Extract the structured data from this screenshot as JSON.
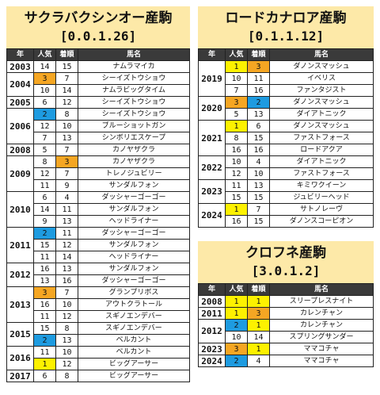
{
  "colors": {
    "orange": "#f5a623",
    "blue": "#1e9be0",
    "yellow": "#fdf100",
    "header_bg": "#fde9a8",
    "thead_bg": "#3a3a3a"
  },
  "columns": {
    "year": "年",
    "popularity": "人気",
    "finish": "着順",
    "horse": "馬名"
  },
  "tables": [
    {
      "title": "サクラバクシンオー産駒",
      "record": "[0.0.1.26]",
      "groups": [
        {
          "year": "2003",
          "rows": [
            {
              "pop": "14",
              "fin": "15",
              "horse": "ナムラマイカ"
            }
          ]
        },
        {
          "year": "2004",
          "rows": [
            {
              "pop": "3",
              "pop_hl": "orange",
              "fin": "7",
              "horse": "シーイズトウショウ"
            },
            {
              "pop": "10",
              "fin": "14",
              "horse": "ナムラビッグタイム"
            }
          ]
        },
        {
          "year": "2005",
          "rows": [
            {
              "pop": "6",
              "fin": "12",
              "horse": "シーイズトウショウ"
            }
          ]
        },
        {
          "year": "2006",
          "rows": [
            {
              "pop": "2",
              "pop_hl": "blue",
              "fin": "8",
              "horse": "シーイズトウショウ"
            },
            {
              "pop": "12",
              "fin": "10",
              "horse": "ブルーショットガン"
            },
            {
              "pop": "7",
              "fin": "13",
              "horse": "シンボリエスケープ"
            }
          ]
        },
        {
          "year": "2008",
          "rows": [
            {
              "pop": "5",
              "fin": "7",
              "horse": "カノヤザクラ"
            }
          ]
        },
        {
          "year": "2009",
          "rows": [
            {
              "pop": "8",
              "fin": "3",
              "fin_hl": "orange",
              "horse": "カノヤザクラ"
            },
            {
              "pop": "12",
              "fin": "7",
              "horse": "トレノジュビリー"
            },
            {
              "pop": "11",
              "fin": "9",
              "horse": "サンダルフォン"
            }
          ]
        },
        {
          "year": "2010",
          "rows": [
            {
              "pop": "6",
              "fin": "4",
              "horse": "ダッシャーゴーゴー"
            },
            {
              "pop": "14",
              "fin": "11",
              "horse": "サンダルフォン"
            },
            {
              "pop": "9",
              "fin": "13",
              "horse": "ヘッドライナー"
            }
          ]
        },
        {
          "year": "2011",
          "rows": [
            {
              "pop": "2",
              "pop_hl": "blue",
              "fin": "11",
              "horse": "ダッシャーゴーゴー"
            },
            {
              "pop": "15",
              "fin": "12",
              "horse": "サンダルフォン"
            },
            {
              "pop": "11",
              "fin": "14",
              "horse": "ヘッドライナー"
            }
          ]
        },
        {
          "year": "2012",
          "rows": [
            {
              "pop": "16",
              "fin": "13",
              "horse": "サンダルフォン"
            },
            {
              "pop": "13",
              "fin": "16",
              "horse": "ダッシャーゴーゴー"
            }
          ]
        },
        {
          "year": "2013",
          "rows": [
            {
              "pop": "3",
              "pop_hl": "orange",
              "fin": "7",
              "horse": "グランプリボス"
            },
            {
              "pop": "16",
              "fin": "10",
              "horse": "アウトクラトール"
            },
            {
              "pop": "11",
              "fin": "12",
              "horse": "スギノエンデバー"
            }
          ]
        },
        {
          "year": "2015",
          "rows": [
            {
              "pop": "15",
              "fin": "8",
              "horse": "スギノエンデバー"
            },
            {
              "pop": "2",
              "pop_hl": "blue",
              "fin": "13",
              "horse": "ベルカント"
            }
          ]
        },
        {
          "year": "2016",
          "rows": [
            {
              "pop": "11",
              "fin": "10",
              "horse": "ベルカント"
            },
            {
              "pop": "1",
              "pop_hl": "yellow",
              "fin": "12",
              "horse": "ビッグアーサー"
            }
          ]
        },
        {
          "year": "2017",
          "rows": [
            {
              "pop": "6",
              "fin": "8",
              "horse": "ビッグアーサー"
            }
          ]
        }
      ]
    },
    {
      "title": "ロードカナロア産駒",
      "record": "[0.1.1.12]",
      "groups": [
        {
          "year": "2019",
          "rows": [
            {
              "pop": "1",
              "pop_hl": "yellow",
              "fin": "3",
              "fin_hl": "orange",
              "horse": "ダノンスマッシュ"
            },
            {
              "pop": "10",
              "fin": "11",
              "horse": "イベリス"
            },
            {
              "pop": "7",
              "fin": "16",
              "horse": "ファンタジスト"
            }
          ]
        },
        {
          "year": "2020",
          "rows": [
            {
              "pop": "3",
              "pop_hl": "orange",
              "fin": "2",
              "fin_hl": "blue",
              "horse": "ダノンスマッシュ"
            },
            {
              "pop": "5",
              "fin": "13",
              "horse": "ダイアトニック"
            }
          ]
        },
        {
          "year": "2021",
          "rows": [
            {
              "pop": "1",
              "pop_hl": "yellow",
              "fin": "6",
              "horse": "ダノンスマッシュ"
            },
            {
              "pop": "8",
              "fin": "15",
              "horse": "ファストフォース"
            },
            {
              "pop": "16",
              "fin": "16",
              "horse": "ロードアクア"
            }
          ]
        },
        {
          "year": "2022",
          "rows": [
            {
              "pop": "10",
              "fin": "4",
              "horse": "ダイアトニック"
            },
            {
              "pop": "12",
              "fin": "10",
              "horse": "ファストフォース"
            }
          ]
        },
        {
          "year": "2023",
          "rows": [
            {
              "pop": "11",
              "fin": "13",
              "horse": "キミワクイーン"
            },
            {
              "pop": "15",
              "fin": "15",
              "horse": "ジュビリーヘッド"
            }
          ]
        },
        {
          "year": "2024",
          "rows": [
            {
              "pop": "1",
              "pop_hl": "yellow",
              "fin": "7",
              "horse": "サトノレーヴ"
            },
            {
              "pop": "16",
              "fin": "15",
              "horse": "ダノンスコーピオン"
            }
          ]
        }
      ]
    },
    {
      "title": "クロフネ産駒",
      "record": "[3.0.1.2]",
      "groups": [
        {
          "year": "2008",
          "rows": [
            {
              "pop": "1",
              "pop_hl": "yellow",
              "fin": "1",
              "fin_hl": "yellow",
              "horse": "スリープレスナイト"
            }
          ]
        },
        {
          "year": "2011",
          "rows": [
            {
              "pop": "1",
              "pop_hl": "yellow",
              "fin": "3",
              "fin_hl": "orange",
              "horse": "カレンチャン"
            }
          ]
        },
        {
          "year": "2012",
          "rows": [
            {
              "pop": "2",
              "pop_hl": "blue",
              "fin": "1",
              "fin_hl": "yellow",
              "horse": "カレンチャン"
            },
            {
              "pop": "10",
              "fin": "14",
              "horse": "スプリングサンダー"
            }
          ]
        },
        {
          "year": "2023",
          "rows": [
            {
              "pop": "3",
              "pop_hl": "orange",
              "fin": "1",
              "fin_hl": "yellow",
              "horse": "ママコチャ"
            }
          ]
        },
        {
          "year": "2024",
          "rows": [
            {
              "pop": "2",
              "pop_hl": "blue",
              "fin": "4",
              "horse": "ママコチャ"
            }
          ]
        }
      ]
    }
  ]
}
